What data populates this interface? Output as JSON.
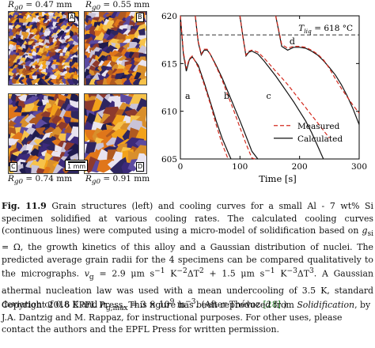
{
  "micrographs": {
    "labels": [
      {
        "r": "R",
        "sub": "g0",
        "value": "= 0.47",
        "unit": "mm"
      },
      {
        "r": "R",
        "sub": "g0",
        "value": "= 0.55",
        "unit": "mm"
      },
      {
        "r": "R",
        "sub": "g0",
        "value": "= 0.74",
        "unit": "mm"
      },
      {
        "r": "R",
        "sub": "g0",
        "value": "= 0.91",
        "unit": "mm"
      }
    ],
    "corners": [
      "A",
      "B",
      "C",
      "D"
    ],
    "scale": "1 mm"
  },
  "chart_data": {
    "type": "line",
    "xlabel": "Time [s]",
    "xlim": [
      0,
      300
    ],
    "ylim": [
      605,
      620
    ],
    "xticks": [
      "0",
      "100",
      "200",
      "300"
    ],
    "yticks": [
      "605",
      "610",
      "615",
      "620"
    ],
    "liquidus": {
      "label": "T",
      "sub": "liq",
      "text": "= 618 °C",
      "value": 618
    },
    "curve_labels": [
      "a",
      "b",
      "c",
      "d"
    ],
    "legend": [
      "Measured",
      "Calculated"
    ],
    "series": [
      {
        "name": "Calculated",
        "curve": "a",
        "x": [
          0,
          5,
          10,
          15,
          20,
          30,
          40,
          50,
          60,
          70,
          80,
          85
        ],
        "y": [
          620,
          616,
          614.2,
          615.4,
          615.7,
          614.8,
          613,
          611,
          609,
          607.2,
          605.7,
          605
        ]
      },
      {
        "name": "Measured",
        "curve": "a",
        "x": [
          0,
          5,
          10,
          15,
          20,
          30,
          40,
          50,
          60,
          70,
          80
        ],
        "y": [
          620,
          616.2,
          614.5,
          615.5,
          615.8,
          614.6,
          612.8,
          610.8,
          608.6,
          606.6,
          605
        ]
      },
      {
        "name": "Calculated",
        "curve": "b",
        "x": [
          25,
          30,
          35,
          40,
          45,
          50,
          60,
          70,
          80,
          90,
          100,
          110,
          120,
          130
        ],
        "y": [
          620,
          617.2,
          615.9,
          616.4,
          616.4,
          616,
          614.8,
          613.5,
          612,
          610.5,
          609,
          607.4,
          605.8,
          605
        ]
      },
      {
        "name": "Measured",
        "curve": "b",
        "x": [
          25,
          30,
          35,
          40,
          45,
          50,
          60,
          70,
          80,
          90,
          100,
          110,
          120,
          125
        ],
        "y": [
          620,
          617.3,
          616,
          616.5,
          616.5,
          616,
          614.7,
          613.3,
          611.6,
          610,
          608.3,
          606.6,
          605.1,
          605
        ]
      },
      {
        "name": "Calculated",
        "curve": "c",
        "x": [
          100,
          105,
          110,
          115,
          120,
          130,
          140,
          150,
          160,
          170,
          180,
          190,
          200,
          210,
          220,
          230,
          240
        ],
        "y": [
          620,
          617.8,
          615.8,
          616.2,
          616.3,
          616,
          615.3,
          614.5,
          613.7,
          612.8,
          611.9,
          611,
          610,
          609,
          607.8,
          606.4,
          605
        ]
      },
      {
        "name": "Measured",
        "curve": "c",
        "x": [
          100,
          105,
          110,
          115,
          120,
          130,
          140,
          150,
          160,
          170,
          180,
          190,
          200,
          210,
          220,
          230,
          240,
          250
        ],
        "y": [
          620,
          617.7,
          615.9,
          616.3,
          616.4,
          616.2,
          615.6,
          614.9,
          614.2,
          613.5,
          612.8,
          612,
          611.2,
          610.4,
          609.6,
          608.8,
          608,
          607.2
        ]
      },
      {
        "name": "Calculated",
        "curve": "d",
        "x": [
          160,
          170,
          180,
          190,
          200,
          210,
          220,
          230,
          240,
          250,
          260,
          270,
          280,
          290,
          300
        ],
        "y": [
          620,
          616.8,
          616.4,
          616.7,
          616.7,
          616.6,
          616.3,
          615.9,
          615.3,
          614.6,
          613.8,
          612.8,
          611.6,
          610.2,
          608.6
        ]
      },
      {
        "name": "Measured",
        "curve": "d",
        "x": [
          160,
          170,
          180,
          190,
          200,
          210,
          220,
          230,
          240,
          250,
          260,
          270,
          280,
          290,
          300
        ],
        "y": [
          620,
          617,
          616.6,
          616.8,
          616.8,
          616.7,
          616.4,
          616,
          615.4,
          614.5,
          613.4,
          612.4,
          611.5,
          610.6,
          609.8
        ]
      }
    ]
  },
  "caption": {
    "figlabel": "Fig. 11.9",
    "text1": " Grain structures (left) and cooling curves for a small Al - 7 wt% Si specimen solidified at various cooling rates. The calculated cooling curves (continuous lines) were computed using a micro-model of solidification based on ",
    "gsi": "g",
    "gsi_sub": "si",
    "text2": " = Ω, the growth kinetics of this alloy and a Gaussian distribution of nuclei. The predicted average grain radii for the 4 specimens can be compared qualitatively to the micrographs. ",
    "vg": "v",
    "vg_sub": "g",
    "text3": " = 2.9 μm s",
    "text4": " K",
    "text5": "ΔT",
    "text6": " + 1.5 μm s",
    "text7": " K",
    "text8": "ΔT",
    "text9": ". A Gaussian athermal nucleation law was used with a mean undercooling of 3.5 K, standard deviation of 0.8 K and ",
    "ng": "n",
    "ng_sub": "g,max",
    "text10": " = 3 × 10",
    "text11": " m",
    "text12": ". (After Thévoz ",
    "cite": "[28]",
    "text13": ".)",
    "exp_m1": "−1",
    "exp_m2": "−2",
    "exp_2": "2",
    "exp_m3": "−3",
    "exp_3": "3",
    "exp_9": "9"
  },
  "copyright": {
    "text1": "Copyright 2016 EPFL Press. This figure has been reproduced from ",
    "book": "Solidification",
    "text2": ", by J.A. Dantzig and M. Rappaz, for instructional purposes. For other uses, please contact the authors and the EPFL Press for written permission."
  },
  "colors": {
    "calculated": "#111111",
    "measured": "#d42a1e",
    "liquidus": "#333333"
  }
}
